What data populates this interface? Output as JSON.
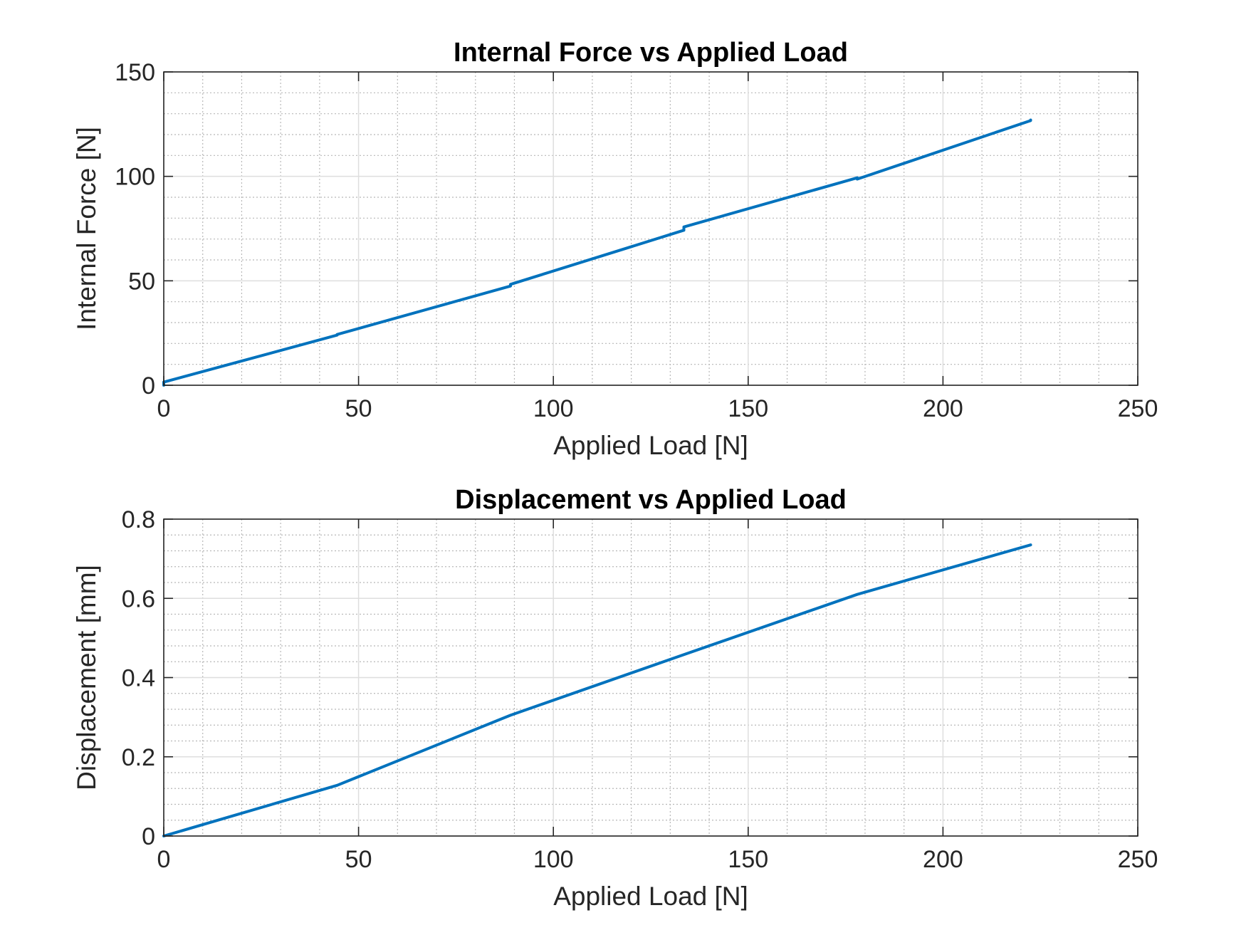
{
  "chart_data": [
    {
      "type": "line",
      "title": "Internal Force vs Applied Load",
      "xlabel": "Applied Load [N]",
      "ylabel": "Internal Force [N]",
      "xlim": [
        0,
        250
      ],
      "ylim": [
        0,
        150
      ],
      "xticks": [
        0,
        50,
        100,
        150,
        200,
        250
      ],
      "yticks": [
        0,
        50,
        100,
        150
      ],
      "xtick_labels": [
        "0",
        "50",
        "100",
        "150",
        "200",
        "250"
      ],
      "ytick_labels": [
        "0",
        "50",
        "100",
        "150"
      ],
      "grid": true,
      "minor_grid": true,
      "series": [
        {
          "color": "#0072BD",
          "x": [
            0,
            0,
            44.5,
            44.5,
            89,
            89,
            133.5,
            133.5,
            178,
            178,
            222.5,
            222.5
          ],
          "y": [
            0,
            1.5,
            24,
            24.3,
            47.5,
            48.3,
            74.2,
            75.8,
            99.3,
            98.7,
            126.7,
            127
          ]
        }
      ]
    },
    {
      "type": "line",
      "title": "Displacement vs Applied Load",
      "xlabel": "Applied Load [N]",
      "ylabel": "Displacement [mm]",
      "xlim": [
        0,
        250
      ],
      "ylim": [
        0,
        0.8
      ],
      "xticks": [
        0,
        50,
        100,
        150,
        200,
        250
      ],
      "yticks": [
        0,
        0.2,
        0.4,
        0.6,
        0.8
      ],
      "xtick_labels": [
        "0",
        "50",
        "100",
        "150",
        "200",
        "250"
      ],
      "ytick_labels": [
        "0",
        "0.2",
        "0.4",
        "0.6",
        "0.8"
      ],
      "grid": true,
      "minor_grid": true,
      "series": [
        {
          "color": "#0072BD",
          "x": [
            0,
            44.5,
            89,
            133.5,
            178,
            222.5
          ],
          "y": [
            0,
            0.128,
            0.305,
            0.458,
            0.61,
            0.735
          ]
        }
      ]
    }
  ]
}
